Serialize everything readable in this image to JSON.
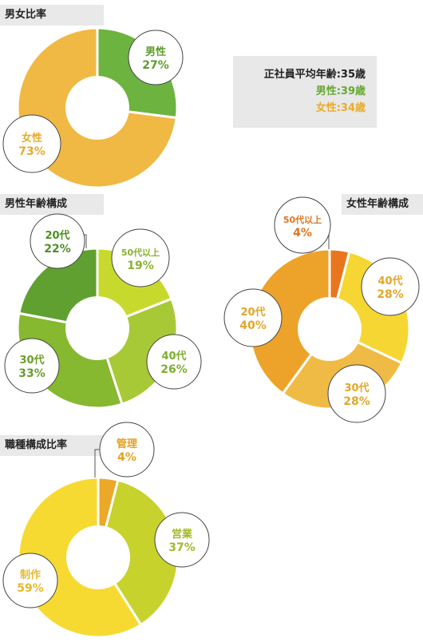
{
  "sections": {
    "gender": "男女比率",
    "male_age": "男性年齢構成",
    "female_age": "女性年齢構成",
    "job": "職種構成比率"
  },
  "stats": {
    "average": "正社員平均年齢:35歳",
    "male": "男性:39歳",
    "female": "女性:34歳",
    "colors": {
      "average": "#222222",
      "male": "#66a830",
      "female": "#e8ac2a"
    }
  },
  "chart_data": [
    {
      "type": "pie",
      "title": "男女比率",
      "slices": [
        {
          "label": "男性",
          "value": 27,
          "value_text": "27%",
          "color": "#6cb33f",
          "text_color": "#5e9c2e"
        },
        {
          "label": "女性",
          "value": 73,
          "value_text": "73%",
          "color": "#f0b944",
          "text_color": "#e6a92a"
        }
      ]
    },
    {
      "type": "pie",
      "title": "男性年齢構成",
      "slices": [
        {
          "label": "50代以上",
          "value": 19,
          "value_text": "19%",
          "color": "#c8d92e",
          "text_color": "#8cb030"
        },
        {
          "label": "40代",
          "value": 26,
          "value_text": "26%",
          "color": "#a8c936",
          "text_color": "#7fae2e"
        },
        {
          "label": "30代",
          "value": 33,
          "value_text": "33%",
          "color": "#86b830",
          "text_color": "#6a9e2a"
        },
        {
          "label": "20代",
          "value": 22,
          "value_text": "22%",
          "color": "#60a030",
          "text_color": "#4f8f26"
        }
      ]
    },
    {
      "type": "pie",
      "title": "女性年齢構成",
      "slices": [
        {
          "label": "40代",
          "value": 28,
          "value_text": "28%",
          "color": "#f6d632",
          "text_color": "#e0a72a"
        },
        {
          "label": "30代",
          "value": 28,
          "value_text": "28%",
          "color": "#f0bb44",
          "text_color": "#e0a72a"
        },
        {
          "label": "20代",
          "value": 40,
          "value_text": "40%",
          "color": "#eda32a",
          "text_color": "#e0a72a"
        },
        {
          "label": "50代以上",
          "value": 4,
          "value_text": "4%",
          "color": "#e8761e",
          "text_color": "#e07520"
        }
      ]
    },
    {
      "type": "pie",
      "title": "職種構成比率",
      "slices": [
        {
          "label": "営業",
          "value": 37,
          "value_text": "37%",
          "color": "#c8d22c",
          "text_color": "#a4b82a"
        },
        {
          "label": "制作",
          "value": 59,
          "value_text": "59%",
          "color": "#f6da32",
          "text_color": "#e6b830"
        },
        {
          "label": "管理",
          "value": 4,
          "value_text": "4%",
          "color": "#eca828",
          "text_color": "#e6a020"
        }
      ]
    }
  ]
}
